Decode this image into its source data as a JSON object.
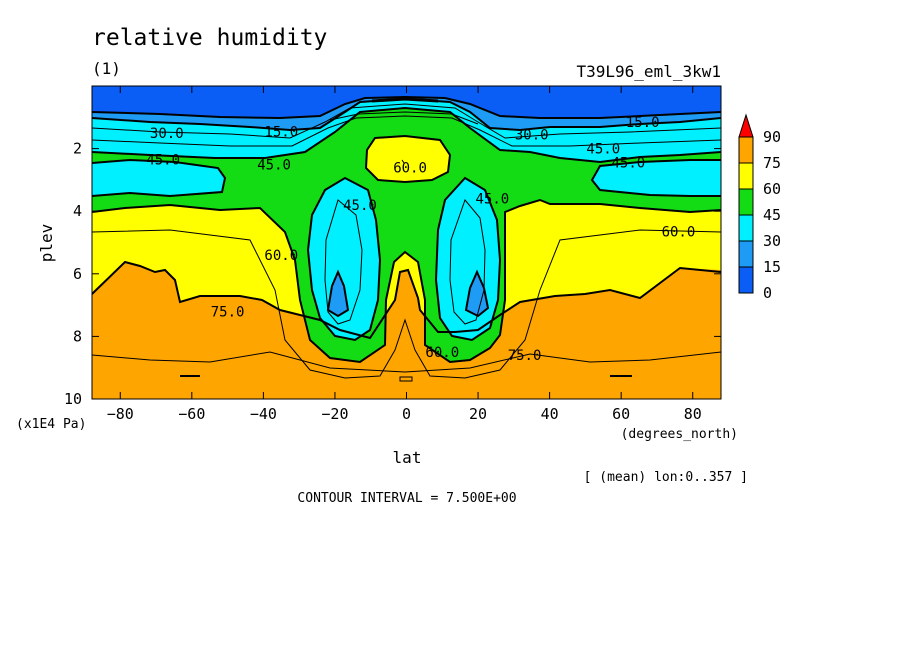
{
  "chart_data": {
    "type": "contour",
    "title": "relative humidity",
    "subtitle_left": "(1)",
    "subtitle_right": "T39L96_eml_3kw1",
    "xlabel": "lat",
    "xunits": "(degrees_north)",
    "ylabel": "plev",
    "yunits": "(x1E4 Pa)",
    "xlim": [
      -87.9,
      87.9
    ],
    "ylim": [
      10,
      0
    ],
    "x_ticks": [
      -80,
      -60,
      -40,
      -20,
      0,
      20,
      40,
      60,
      80
    ],
    "x_tick_labels": [
      "−80",
      "−60",
      "−40",
      "−20",
      "0",
      "20",
      "40",
      "60",
      "80"
    ],
    "y_ticks": [
      2,
      4,
      6,
      8,
      10
    ],
    "y_tick_labels": [
      "2",
      "4",
      "6",
      "8",
      "10"
    ],
    "contour_interval": 7.5,
    "note": "[ (mean) lon:0..357 ]",
    "footer": "CONTOUR INTERVAL = 7.500E+00",
    "colorbar": {
      "levels": [
        0,
        15,
        30,
        45,
        60,
        75,
        90
      ],
      "level_labels": [
        "0",
        "15",
        "30",
        "45",
        "60",
        "75",
        "90"
      ],
      "colors": [
        "#0a5ef5",
        "#1e9bf4",
        "#00f0ff",
        "#14dc14",
        "#ffff00",
        "#ffa500",
        "#ff0000"
      ],
      "extend": "max"
    },
    "contour_labels": [
      {
        "text": "30.0",
        "lat": -67,
        "plev": 1.5
      },
      {
        "text": "15.0",
        "lat": -35,
        "plev": 1.45
      },
      {
        "text": "45.0",
        "lat": -68,
        "plev": 2.35
      },
      {
        "text": "45.0",
        "lat": -37,
        "plev": 2.5
      },
      {
        "text": "60.0",
        "lat": 1,
        "plev": 2.6
      },
      {
        "text": "45.0",
        "lat": -13,
        "plev": 3.8
      },
      {
        "text": "45.0",
        "lat": 24,
        "plev": 3.6
      },
      {
        "text": "60.0",
        "lat": -35,
        "plev": 5.4
      },
      {
        "text": "75.0",
        "lat": -50,
        "plev": 7.2
      },
      {
        "text": "60.0",
        "lat": 10,
        "plev": 8.5
      },
      {
        "text": "75.0",
        "lat": 33,
        "plev": 8.6
      },
      {
        "text": "30.0",
        "lat": 35,
        "plev": 1.55
      },
      {
        "text": "15.0",
        "lat": 66,
        "plev": 1.15
      },
      {
        "text": "45.0",
        "lat": 55,
        "plev": 2.0
      },
      {
        "text": "45.0",
        "lat": 62,
        "plev": 2.45
      },
      {
        "text": "60.0",
        "lat": 76,
        "plev": 4.65
      }
    ]
  }
}
